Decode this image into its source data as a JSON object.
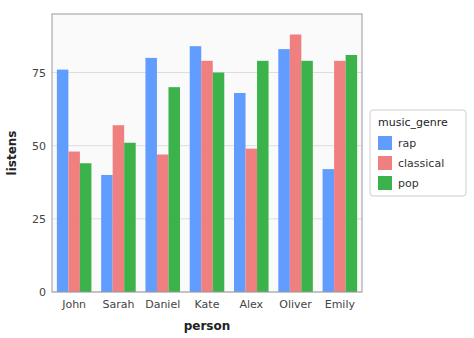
{
  "chart_data": {
    "type": "bar",
    "categories": [
      "John",
      "Sarah",
      "Daniel",
      "Kate",
      "Alex",
      "Oliver",
      "Emily"
    ],
    "series": [
      {
        "name": "rap",
        "color": "#619CFF",
        "values": [
          76,
          40,
          80,
          84,
          68,
          83,
          42
        ]
      },
      {
        "name": "classical",
        "color": "#F08080",
        "values": [
          48,
          57,
          47,
          79,
          49,
          88,
          79
        ]
      },
      {
        "name": "pop",
        "color": "#3CB34A",
        "values": [
          44,
          51,
          70,
          75,
          79,
          79,
          81
        ]
      }
    ],
    "xlabel": "person",
    "ylabel": "listens",
    "legend_title": "music_genre",
    "ylim": [
      0,
      95
    ],
    "yticks": [
      0,
      25,
      50,
      75
    ],
    "grid": true,
    "legend": "right"
  }
}
